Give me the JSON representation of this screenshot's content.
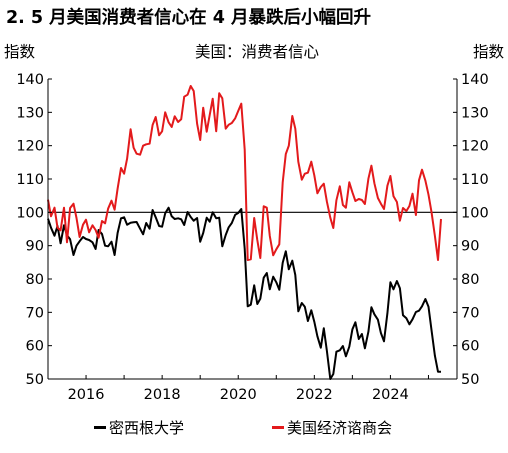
{
  "title": "2. 5 月美国消费者信心在 4 月暴跌后小幅回升",
  "chart_data": {
    "type": "line",
    "subtitle": "美国：消费者信心",
    "ylabel_left": "指数",
    "ylabel_right": "指数",
    "ylim": [
      50,
      140
    ],
    "yticks": [
      50,
      60,
      70,
      80,
      90,
      100,
      110,
      120,
      130,
      140
    ],
    "xlim": [
      2015.0,
      2025.75
    ],
    "xticks": [
      2016,
      2018,
      2020,
      2022,
      2024
    ],
    "reference_line": 100,
    "series": [
      {
        "name": "密西根大学",
        "color": "#000000",
        "x": [
          2015.0,
          2015.08,
          2015.17,
          2015.25,
          2015.33,
          2015.42,
          2015.5,
          2015.58,
          2015.67,
          2015.75,
          2015.83,
          2015.92,
          2016.0,
          2016.08,
          2016.17,
          2016.25,
          2016.33,
          2016.42,
          2016.5,
          2016.58,
          2016.67,
          2016.75,
          2016.83,
          2016.92,
          2017.0,
          2017.08,
          2017.17,
          2017.25,
          2017.33,
          2017.42,
          2017.5,
          2017.58,
          2017.67,
          2017.75,
          2017.83,
          2017.92,
          2018.0,
          2018.08,
          2018.17,
          2018.25,
          2018.33,
          2018.42,
          2018.5,
          2018.58,
          2018.67,
          2018.75,
          2018.83,
          2018.92,
          2019.0,
          2019.08,
          2019.17,
          2019.25,
          2019.33,
          2019.42,
          2019.5,
          2019.58,
          2019.67,
          2019.75,
          2019.83,
          2019.92,
          2020.0,
          2020.08,
          2020.17,
          2020.25,
          2020.33,
          2020.42,
          2020.5,
          2020.58,
          2020.67,
          2020.75,
          2020.83,
          2020.92,
          2021.0,
          2021.08,
          2021.17,
          2021.25,
          2021.33,
          2021.42,
          2021.5,
          2021.58,
          2021.67,
          2021.75,
          2021.83,
          2021.92,
          2022.0,
          2022.08,
          2022.17,
          2022.25,
          2022.33,
          2022.42,
          2022.5,
          2022.58,
          2022.67,
          2022.75,
          2022.83,
          2022.92,
          2023.0,
          2023.08,
          2023.17,
          2023.25,
          2023.33,
          2023.42,
          2023.5,
          2023.58,
          2023.67,
          2023.75,
          2023.83,
          2023.92,
          2024.0,
          2024.08,
          2024.17,
          2024.25,
          2024.33,
          2024.42,
          2024.5,
          2024.58,
          2024.67,
          2024.75,
          2024.83,
          2024.92,
          2025.0,
          2025.08,
          2025.17,
          2025.25,
          2025.33
        ],
        "values": [
          98.1,
          95.4,
          93.0,
          95.9,
          90.7,
          96.1,
          93.1,
          91.9,
          87.2,
          90.0,
          91.3,
          92.6,
          92.0,
          91.7,
          91.0,
          89.0,
          94.7,
          93.5,
          90.0,
          89.8,
          91.2,
          87.2,
          93.8,
          98.2,
          98.5,
          96.3,
          96.9,
          97.0,
          97.1,
          95.1,
          93.4,
          96.8,
          95.1,
          100.7,
          98.5,
          95.9,
          95.7,
          99.7,
          101.4,
          98.8,
          98.0,
          98.2,
          97.9,
          96.2,
          100.1,
          98.6,
          97.5,
          98.3,
          91.2,
          93.8,
          98.4,
          97.2,
          100.0,
          98.2,
          98.4,
          89.8,
          93.2,
          95.5,
          96.8,
          99.3,
          99.8,
          101.0,
          89.1,
          71.8,
          72.3,
          78.1,
          72.5,
          74.1,
          80.4,
          81.8,
          76.9,
          80.7,
          79.0,
          76.8,
          84.9,
          88.3,
          82.9,
          85.5,
          81.2,
          70.3,
          72.8,
          71.7,
          67.4,
          70.6,
          67.2,
          62.8,
          59.4,
          65.2,
          58.4,
          50.0,
          51.5,
          58.2,
          58.6,
          59.9,
          56.8,
          59.7,
          64.9,
          67.0,
          62.0,
          63.5,
          59.2,
          64.2,
          71.5,
          69.4,
          67.8,
          63.8,
          61.3,
          69.7,
          79.0,
          76.9,
          79.4,
          77.2,
          69.1,
          68.2,
          66.4,
          67.9,
          70.1,
          70.5,
          71.8,
          74.0,
          71.7,
          64.7,
          57.0,
          52.2,
          52.2
        ]
      },
      {
        "name": "美国经济谘商会",
        "color": "#e31a1c",
        "x": [
          2015.0,
          2015.08,
          2015.17,
          2015.25,
          2015.33,
          2015.42,
          2015.5,
          2015.58,
          2015.67,
          2015.75,
          2015.83,
          2015.92,
          2016.0,
          2016.08,
          2016.17,
          2016.25,
          2016.33,
          2016.42,
          2016.5,
          2016.58,
          2016.67,
          2016.75,
          2016.83,
          2016.92,
          2017.0,
          2017.08,
          2017.17,
          2017.25,
          2017.33,
          2017.42,
          2017.5,
          2017.58,
          2017.67,
          2017.75,
          2017.83,
          2017.92,
          2018.0,
          2018.08,
          2018.17,
          2018.25,
          2018.33,
          2018.42,
          2018.5,
          2018.58,
          2018.67,
          2018.75,
          2018.83,
          2018.92,
          2019.0,
          2019.08,
          2019.17,
          2019.25,
          2019.33,
          2019.42,
          2019.5,
          2019.58,
          2019.67,
          2019.75,
          2019.83,
          2019.92,
          2020.0,
          2020.08,
          2020.17,
          2020.25,
          2020.33,
          2020.42,
          2020.5,
          2020.58,
          2020.67,
          2020.75,
          2020.83,
          2020.92,
          2021.0,
          2021.08,
          2021.17,
          2021.25,
          2021.33,
          2021.42,
          2021.5,
          2021.58,
          2021.67,
          2021.75,
          2021.83,
          2021.92,
          2022.0,
          2022.08,
          2022.17,
          2022.25,
          2022.33,
          2022.42,
          2022.5,
          2022.58,
          2022.67,
          2022.75,
          2022.83,
          2022.92,
          2023.0,
          2023.08,
          2023.17,
          2023.25,
          2023.33,
          2023.42,
          2023.5,
          2023.58,
          2023.67,
          2023.75,
          2023.83,
          2023.92,
          2024.0,
          2024.08,
          2024.17,
          2024.25,
          2024.33,
          2024.42,
          2024.5,
          2024.58,
          2024.67,
          2024.75,
          2024.83,
          2024.92,
          2025.0,
          2025.08,
          2025.17,
          2025.25,
          2025.33
        ],
        "values": [
          103.8,
          98.8,
          101.4,
          95.4,
          94.6,
          101.4,
          91.0,
          101.3,
          102.6,
          98.3,
          92.6,
          96.3,
          97.8,
          94.0,
          96.1,
          94.7,
          92.4,
          97.4,
          96.7,
          101.1,
          103.5,
          100.8,
          107.1,
          113.3,
          111.6,
          116.1,
          124.9,
          119.4,
          117.6,
          117.3,
          120.0,
          120.4,
          120.6,
          126.2,
          128.6,
          123.1,
          124.3,
          130.0,
          127.0,
          125.6,
          128.8,
          127.1,
          127.9,
          134.7,
          135.3,
          137.9,
          136.4,
          126.6,
          121.7,
          131.4,
          124.2,
          129.2,
          134.1,
          124.3,
          135.7,
          134.2,
          125.1,
          126.3,
          126.8,
          128.2,
          130.4,
          132.6,
          118.8,
          85.7,
          85.9,
          98.3,
          91.7,
          86.3,
          101.8,
          101.4,
          92.9,
          87.1,
          88.9,
          90.4,
          109.0,
          117.5,
          120.0,
          128.9,
          125.1,
          115.2,
          109.8,
          111.6,
          111.9,
          115.2,
          111.1,
          105.7,
          107.6,
          108.6,
          103.2,
          98.4,
          95.3,
          103.6,
          107.8,
          102.2,
          101.4,
          109.0,
          106.0,
          103.4,
          104.0,
          103.7,
          102.5,
          110.1,
          114.0,
          108.7,
          104.3,
          102.6,
          101.0,
          108.0,
          110.9,
          104.8,
          103.1,
          97.5,
          101.3,
          100.4,
          101.9,
          105.6,
          99.2,
          109.6,
          112.8,
          109.5,
          105.3,
          100.1,
          92.9,
          85.7,
          98.0
        ]
      }
    ]
  }
}
